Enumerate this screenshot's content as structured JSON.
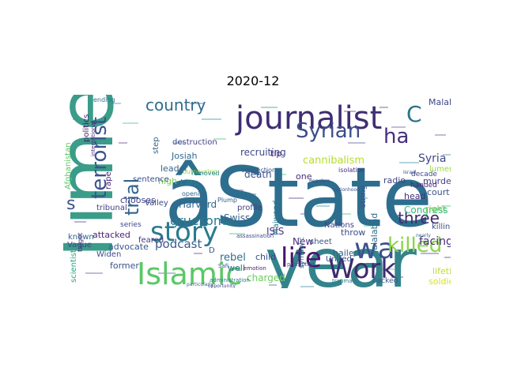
{
  "title": "2020-12",
  "palette": "viridis",
  "words": [
    {
      "text": "Time",
      "color": "#3a9c89"
    },
    {
      "text": "âState",
      "color": "#2d6e8e"
    },
    {
      "text": "year",
      "color": "#33838c"
    },
    {
      "text": "journalist",
      "color": "#3f2e73"
    },
    {
      "text": "Islamic",
      "color": "#5ac864"
    },
    {
      "text": "story",
      "color": "#2a7a8e"
    },
    {
      "text": "Work",
      "color": "#3f2a6e"
    },
    {
      "text": "life",
      "color": "#47146c"
    },
    {
      "text": "wa",
      "color": "#3b528b"
    },
    {
      "text": "killed",
      "color": "#89d548"
    },
    {
      "text": "Syrian",
      "color": "#3c4f8a"
    },
    {
      "text": "ha",
      "color": "#462f7a"
    },
    {
      "text": "C",
      "color": "#2c738e"
    },
    {
      "text": "terrorist",
      "color": "#3a548c"
    },
    {
      "text": "country",
      "color": "#2f6b8e"
    },
    {
      "text": "three",
      "color": "#3f2a6e"
    },
    {
      "text": "trial",
      "color": "#33638d"
    },
    {
      "text": "s",
      "color": "#3b528b"
    },
    {
      "text": "gruesome",
      "color": "#29798e"
    },
    {
      "text": "podcast",
      "color": "#3b5a8c"
    },
    {
      "text": "Syria",
      "color": "#3e4a89"
    },
    {
      "text": "facing",
      "color": "#472c7a"
    },
    {
      "text": "Congress",
      "color": "#35b779"
    },
    {
      "text": "cannibalism",
      "color": "#b5de2b"
    },
    {
      "text": "recruiting",
      "color": "#3e4989"
    },
    {
      "text": "rebel",
      "color": "#2e6f8e"
    },
    {
      "text": "New",
      "color": "#472d7b"
    },
    {
      "text": "ISIS",
      "color": "#443983"
    },
    {
      "text": "Harvard",
      "color": "#31688e"
    },
    {
      "text": "Josiah",
      "color": "#31668e"
    },
    {
      "text": "Malalai",
      "color": "#3f4889"
    },
    {
      "text": "Jalalabad",
      "color": "#2d708e"
    },
    {
      "text": "murder",
      "color": "#433e85"
    },
    {
      "text": "charged",
      "color": "#6ccd5a"
    },
    {
      "text": "court",
      "color": "#3b518b"
    },
    {
      "text": "hailed",
      "color": "#355f8d"
    },
    {
      "text": "advocate",
      "color": "#38588c"
    },
    {
      "text": "soldier",
      "color": "#d8e219"
    },
    {
      "text": "lifetime",
      "color": "#bddf26"
    },
    {
      "text": "radio",
      "color": "#404588"
    },
    {
      "text": "head",
      "color": "#46307e"
    },
    {
      "text": "leader",
      "color": "#32658e"
    },
    {
      "text": "death",
      "color": "#3b528b"
    },
    {
      "text": "attacked",
      "color": "#481f70"
    },
    {
      "text": "former",
      "color": "#3a548c"
    },
    {
      "text": "child",
      "color": "#3e4989"
    },
    {
      "text": "well",
      "color": "#2f6c8e"
    },
    {
      "text": "Swiss",
      "color": "#33638d"
    },
    {
      "text": "chooses",
      "color": "#404387"
    },
    {
      "text": "high",
      "color": "#7ad151"
    },
    {
      "text": "Lieu",
      "color": "#26828e"
    },
    {
      "text": "right",
      "color": "#7ad151"
    },
    {
      "text": "killing",
      "color": "#3b528b"
    },
    {
      "text": "one",
      "color": "#472d7b"
    },
    {
      "text": "tip",
      "color": "#482173"
    },
    {
      "text": "lumen",
      "color": "#95d840"
    },
    {
      "text": "throw",
      "color": "#3d4d8a"
    },
    {
      "text": "sheet",
      "color": "#3a548c"
    },
    {
      "text": "Widen",
      "color": "#3e4c8a"
    },
    {
      "text": "Nations",
      "color": "#404688"
    },
    {
      "text": "Maiwand",
      "color": "#2a788e"
    },
    {
      "text": "string",
      "color": "#3b528b"
    },
    {
      "text": "United",
      "color": "#3c4f8a"
    },
    {
      "text": "known",
      "color": "#33638d"
    },
    {
      "text": "Vague",
      "color": "#3f4788"
    },
    {
      "text": "rape",
      "color": "#482677"
    },
    {
      "text": "scientist",
      "color": "#22a884"
    },
    {
      "text": "tribunal",
      "color": "#424086"
    },
    {
      "text": "Valley",
      "color": "#3e4989"
    },
    {
      "text": "sentence",
      "color": "#3b528b"
    },
    {
      "text": "step",
      "color": "#33638d"
    },
    {
      "text": "profile",
      "color": "#404588"
    },
    {
      "text": "Afghanistan",
      "color": "#5ec962"
    },
    {
      "text": "politics",
      "color": "#481a6c"
    },
    {
      "text": "feared",
      "color": "#453882"
    },
    {
      "text": "destruction",
      "color": "#424086"
    },
    {
      "text": "decade",
      "color": "#3e4989"
    },
    {
      "text": "handed",
      "color": "#482878"
    },
    {
      "text": "symbolic",
      "color": "#2e6e8e"
    },
    {
      "text": "backed",
      "color": "#38588c"
    },
    {
      "text": "series",
      "color": "#404588"
    },
    {
      "text": "outpouring",
      "color": "#95d840"
    },
    {
      "text": "removed",
      "color": "#25848e"
    },
    {
      "text": "connection",
      "color": "#3b528b"
    },
    {
      "text": "isolation",
      "color": "#472d7b"
    },
    {
      "text": "ending",
      "color": "#2c728e"
    },
    {
      "text": "target",
      "color": "#46337f"
    },
    {
      "text": "Plump",
      "color": "#34618d"
    },
    {
      "text": "Safi",
      "color": "#3b528b"
    },
    {
      "text": "opening",
      "color": "#31688e"
    },
    {
      "text": "assassination",
      "color": "#3e4989"
    },
    {
      "text": "D",
      "color": "#3b528b"
    },
    {
      "text": "emotion",
      "color": "#481f70"
    },
    {
      "text": "prompted",
      "color": "#3a548c"
    },
    {
      "text": "traumatic",
      "color": "#2a788e"
    },
    {
      "text": "administration",
      "color": "#29788e"
    },
    {
      "text": "international",
      "color": "#482878"
    },
    {
      "text": "Regulars",
      "color": "#3e4989"
    },
    {
      "text": "nationhood",
      "color": "#3b528b"
    },
    {
      "text": "particularly",
      "color": "#2e6e8e"
    },
    {
      "text": "opportunity",
      "color": "#404588"
    },
    {
      "text": "Israel",
      "color": "#3b528b"
    },
    {
      "text": "nearly",
      "color": "#31688e"
    }
  ]
}
